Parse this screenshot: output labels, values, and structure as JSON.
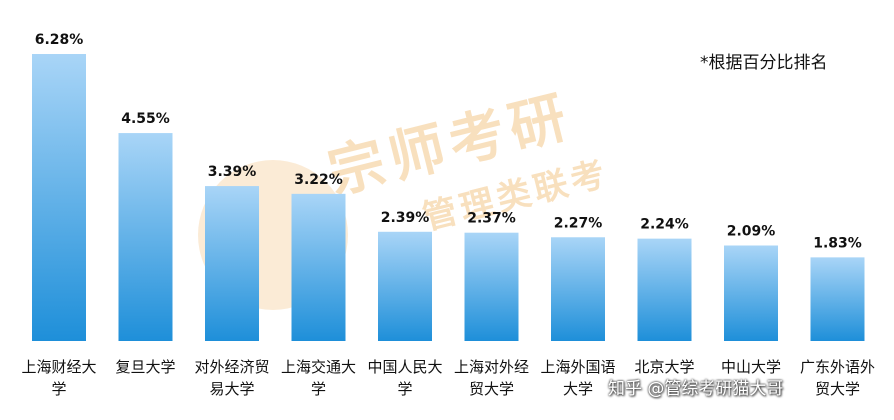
{
  "note": "*根据百分比排名",
  "watermark": {
    "title": "宗师考研",
    "subtitle": "管理类联考",
    "credit": "知乎 @管综考研猫大哥"
  },
  "colors": {
    "bar_top": "#a9d5f7",
    "bar_bottom": "#1e8fd9",
    "text": "#111111",
    "watermark": "#f3c78a"
  },
  "chart_data": {
    "type": "bar",
    "categories": [
      [
        "上海财经大",
        "学"
      ],
      [
        "复旦大学"
      ],
      [
        "对外经济贸",
        "易大学"
      ],
      [
        "上海交通大",
        "学"
      ],
      [
        "中国人民大",
        "学"
      ],
      [
        "上海对外经",
        "贸大学"
      ],
      [
        "上海外国语",
        "大学"
      ],
      [
        "北京大学"
      ],
      [
        "中山大学"
      ],
      [
        "广东外语外",
        "贸大学"
      ]
    ],
    "values": [
      6.28,
      4.55,
      3.39,
      3.22,
      2.39,
      2.37,
      2.27,
      2.24,
      2.09,
      1.83
    ],
    "value_labels": [
      "6.28%",
      "4.55%",
      "3.39%",
      "3.22%",
      "2.39%",
      "2.37%",
      "2.27%",
      "2.24%",
      "2.09%",
      "1.83%"
    ],
    "title": "",
    "xlabel": "",
    "ylabel": "",
    "ylim": [
      0,
      6.28
    ],
    "grid": false,
    "legend": "none"
  }
}
